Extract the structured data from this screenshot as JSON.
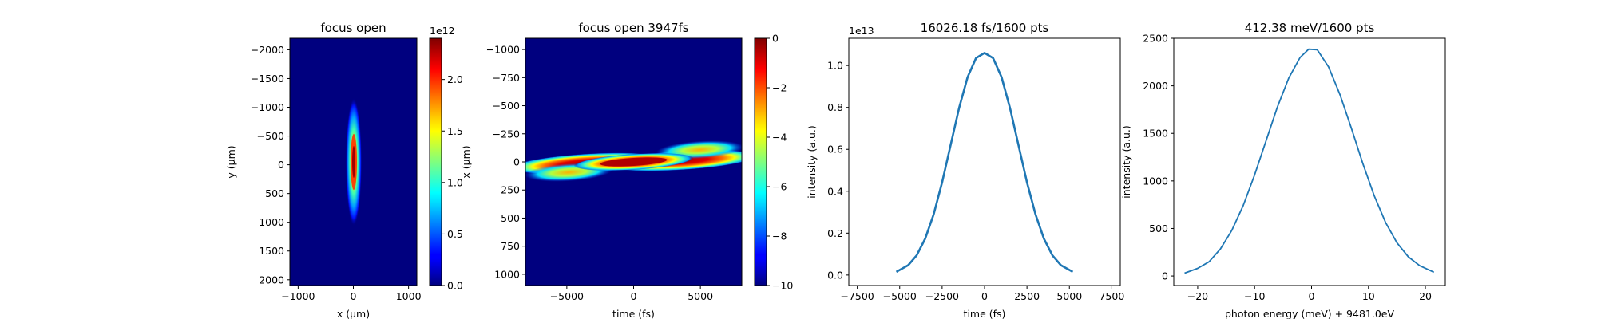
{
  "chart_data": [
    {
      "type": "heatmap",
      "title": "focus open",
      "xlabel": "x (μm)",
      "ylabel": "y (μm)",
      "xlim": [
        -1150,
        1150
      ],
      "ylim": [
        2100,
        -2200
      ],
      "xticks": [
        -1000,
        0,
        1000
      ],
      "yticks": [
        -2000,
        -1500,
        -1000,
        -500,
        0,
        500,
        1000,
        1500,
        2000
      ],
      "colormap": "jet",
      "colorbar": {
        "range": [
          0,
          2.4
        ],
        "ticks": [
          0.0,
          0.5,
          1.0,
          1.5,
          2.0
        ],
        "tick_labels": [
          "0.0",
          "0.5",
          "1.0",
          "1.5",
          "2.0"
        ],
        "offset_label": "1e12"
      },
      "feature": "narrow vertical elliptical focal spot centered at x=0, y=0, peak about 2.4e12"
    },
    {
      "type": "heatmap",
      "title": "focus open 3947fs",
      "xlabel": "time (fs)",
      "ylabel": "x (μm)",
      "xlim": [
        -8100,
        8100
      ],
      "ylim": [
        1100,
        -1100
      ],
      "xticks": [
        -5000,
        0,
        5000
      ],
      "yticks": [
        -1000,
        -750,
        -500,
        -250,
        0,
        250,
        500,
        750,
        1000
      ],
      "colormap": "jet",
      "colorbar": {
        "range": [
          -10,
          0
        ],
        "ticks": [
          0,
          -2,
          -4,
          -6,
          -8,
          -10
        ],
        "tick_labels": [
          "0",
          "−2",
          "−4",
          "−6",
          "−8",
          "−10"
        ]
      },
      "feature": "log-scale pulse front tilted from (-7500, 150) to (7500, -150), peak near time 0"
    },
    {
      "type": "line",
      "title": "16026.18 fs/1600 pts",
      "xlabel": "time (fs)",
      "ylabel": "intensity (a.u.)",
      "xlim": [
        -8000,
        8000
      ],
      "ylim": [
        -0.05,
        1.13
      ],
      "xticks": [
        -7500,
        -5000,
        -2500,
        0,
        2500,
        5000,
        7500
      ],
      "yticks": [
        0.0,
        0.2,
        0.4,
        0.6,
        0.8,
        1.0
      ],
      "ytick_labels": [
        "0.0",
        "0.2",
        "0.4",
        "0.6",
        "0.8",
        "1.0"
      ],
      "offset_label": "1e13",
      "series": [
        {
          "x": [
            -5200,
            -4500,
            -4000,
            -3500,
            -3000,
            -2500,
            -2000,
            -1500,
            -1000,
            -500,
            0,
            500,
            1000,
            1500,
            2000,
            2500,
            3000,
            3500,
            4000,
            4500,
            5200
          ],
          "y": [
            0.015,
            0.047,
            0.094,
            0.173,
            0.29,
            0.443,
            0.62,
            0.797,
            0.945,
            1.036,
            1.06,
            1.036,
            0.945,
            0.797,
            0.62,
            0.443,
            0.29,
            0.173,
            0.094,
            0.047,
            0.015
          ]
        }
      ]
    },
    {
      "type": "line",
      "title": "412.38 meV/1600 pts",
      "xlabel": "photon energy (meV) + 9481.0eV",
      "ylabel": "intensity (a.u.)",
      "xlim": [
        -24.2,
        23.5
      ],
      "ylim": [
        -100,
        2500
      ],
      "xticks": [
        -20,
        -10,
        0,
        10,
        20
      ],
      "yticks": [
        0,
        500,
        1000,
        1500,
        2000,
        2500
      ],
      "series": [
        {
          "x": [
            -22.3,
            -20,
            -18,
            -16,
            -14,
            -12,
            -10,
            -8,
            -6,
            -4,
            -2,
            -0.5,
            1,
            3,
            5,
            7,
            9,
            11,
            13,
            15,
            17,
            19,
            21.5
          ],
          "y": [
            30,
            80,
            150,
            285,
            480,
            742,
            1063,
            1421,
            1776,
            2082,
            2299,
            2385,
            2380,
            2198,
            1908,
            1554,
            1186,
            846,
            563,
            350,
            202,
            109,
            40
          ]
        }
      ]
    }
  ]
}
